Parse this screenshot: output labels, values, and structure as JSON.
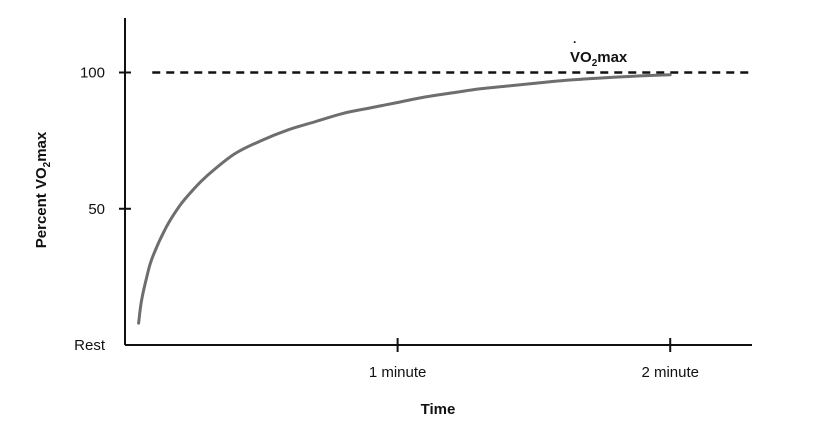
{
  "chart_data": {
    "type": "line",
    "xlabel": "Time",
    "ylabel": {
      "prefix": "Percent ",
      "v": "V",
      "o": "O",
      "sub": "2",
      "suffix": "max",
      "text": "Percent V̇O2max"
    },
    "xlim": [
      0,
      2.3
    ],
    "ylim": [
      0,
      120
    ],
    "x_ticks": [
      {
        "value": 1,
        "label": "1 minute"
      },
      {
        "value": 2,
        "label": "2 minute"
      }
    ],
    "y_ticks": [
      {
        "value": 0,
        "label": "Rest"
      },
      {
        "value": 50,
        "label": "50"
      },
      {
        "value": 100,
        "label": "100"
      }
    ],
    "reference_line": {
      "y": 100,
      "style": "dashed",
      "x_range": [
        0.1,
        2.3
      ],
      "label": {
        "v": "V",
        "o": "O",
        "sub": "2",
        "suffix": "max",
        "text": "V̇O2max"
      }
    },
    "series": [
      {
        "color": "#6e6e6e",
        "x": [
          0.05,
          0.06,
          0.08,
          0.1,
          0.15,
          0.2,
          0.25,
          0.3,
          0.4,
          0.5,
          0.6,
          0.7,
          0.8,
          0.9,
          1.0,
          1.1,
          1.2,
          1.3,
          1.4,
          1.5,
          1.6,
          1.7,
          1.8,
          1.9,
          2.0
        ],
        "y": [
          8,
          16,
          25,
          32,
          43,
          51,
          57,
          62,
          70,
          75,
          79,
          82,
          85,
          87,
          89,
          91,
          92.5,
          94,
          95,
          96,
          97,
          97.7,
          98.3,
          98.8,
          99.2
        ]
      }
    ],
    "grid": false,
    "legend": "none"
  }
}
